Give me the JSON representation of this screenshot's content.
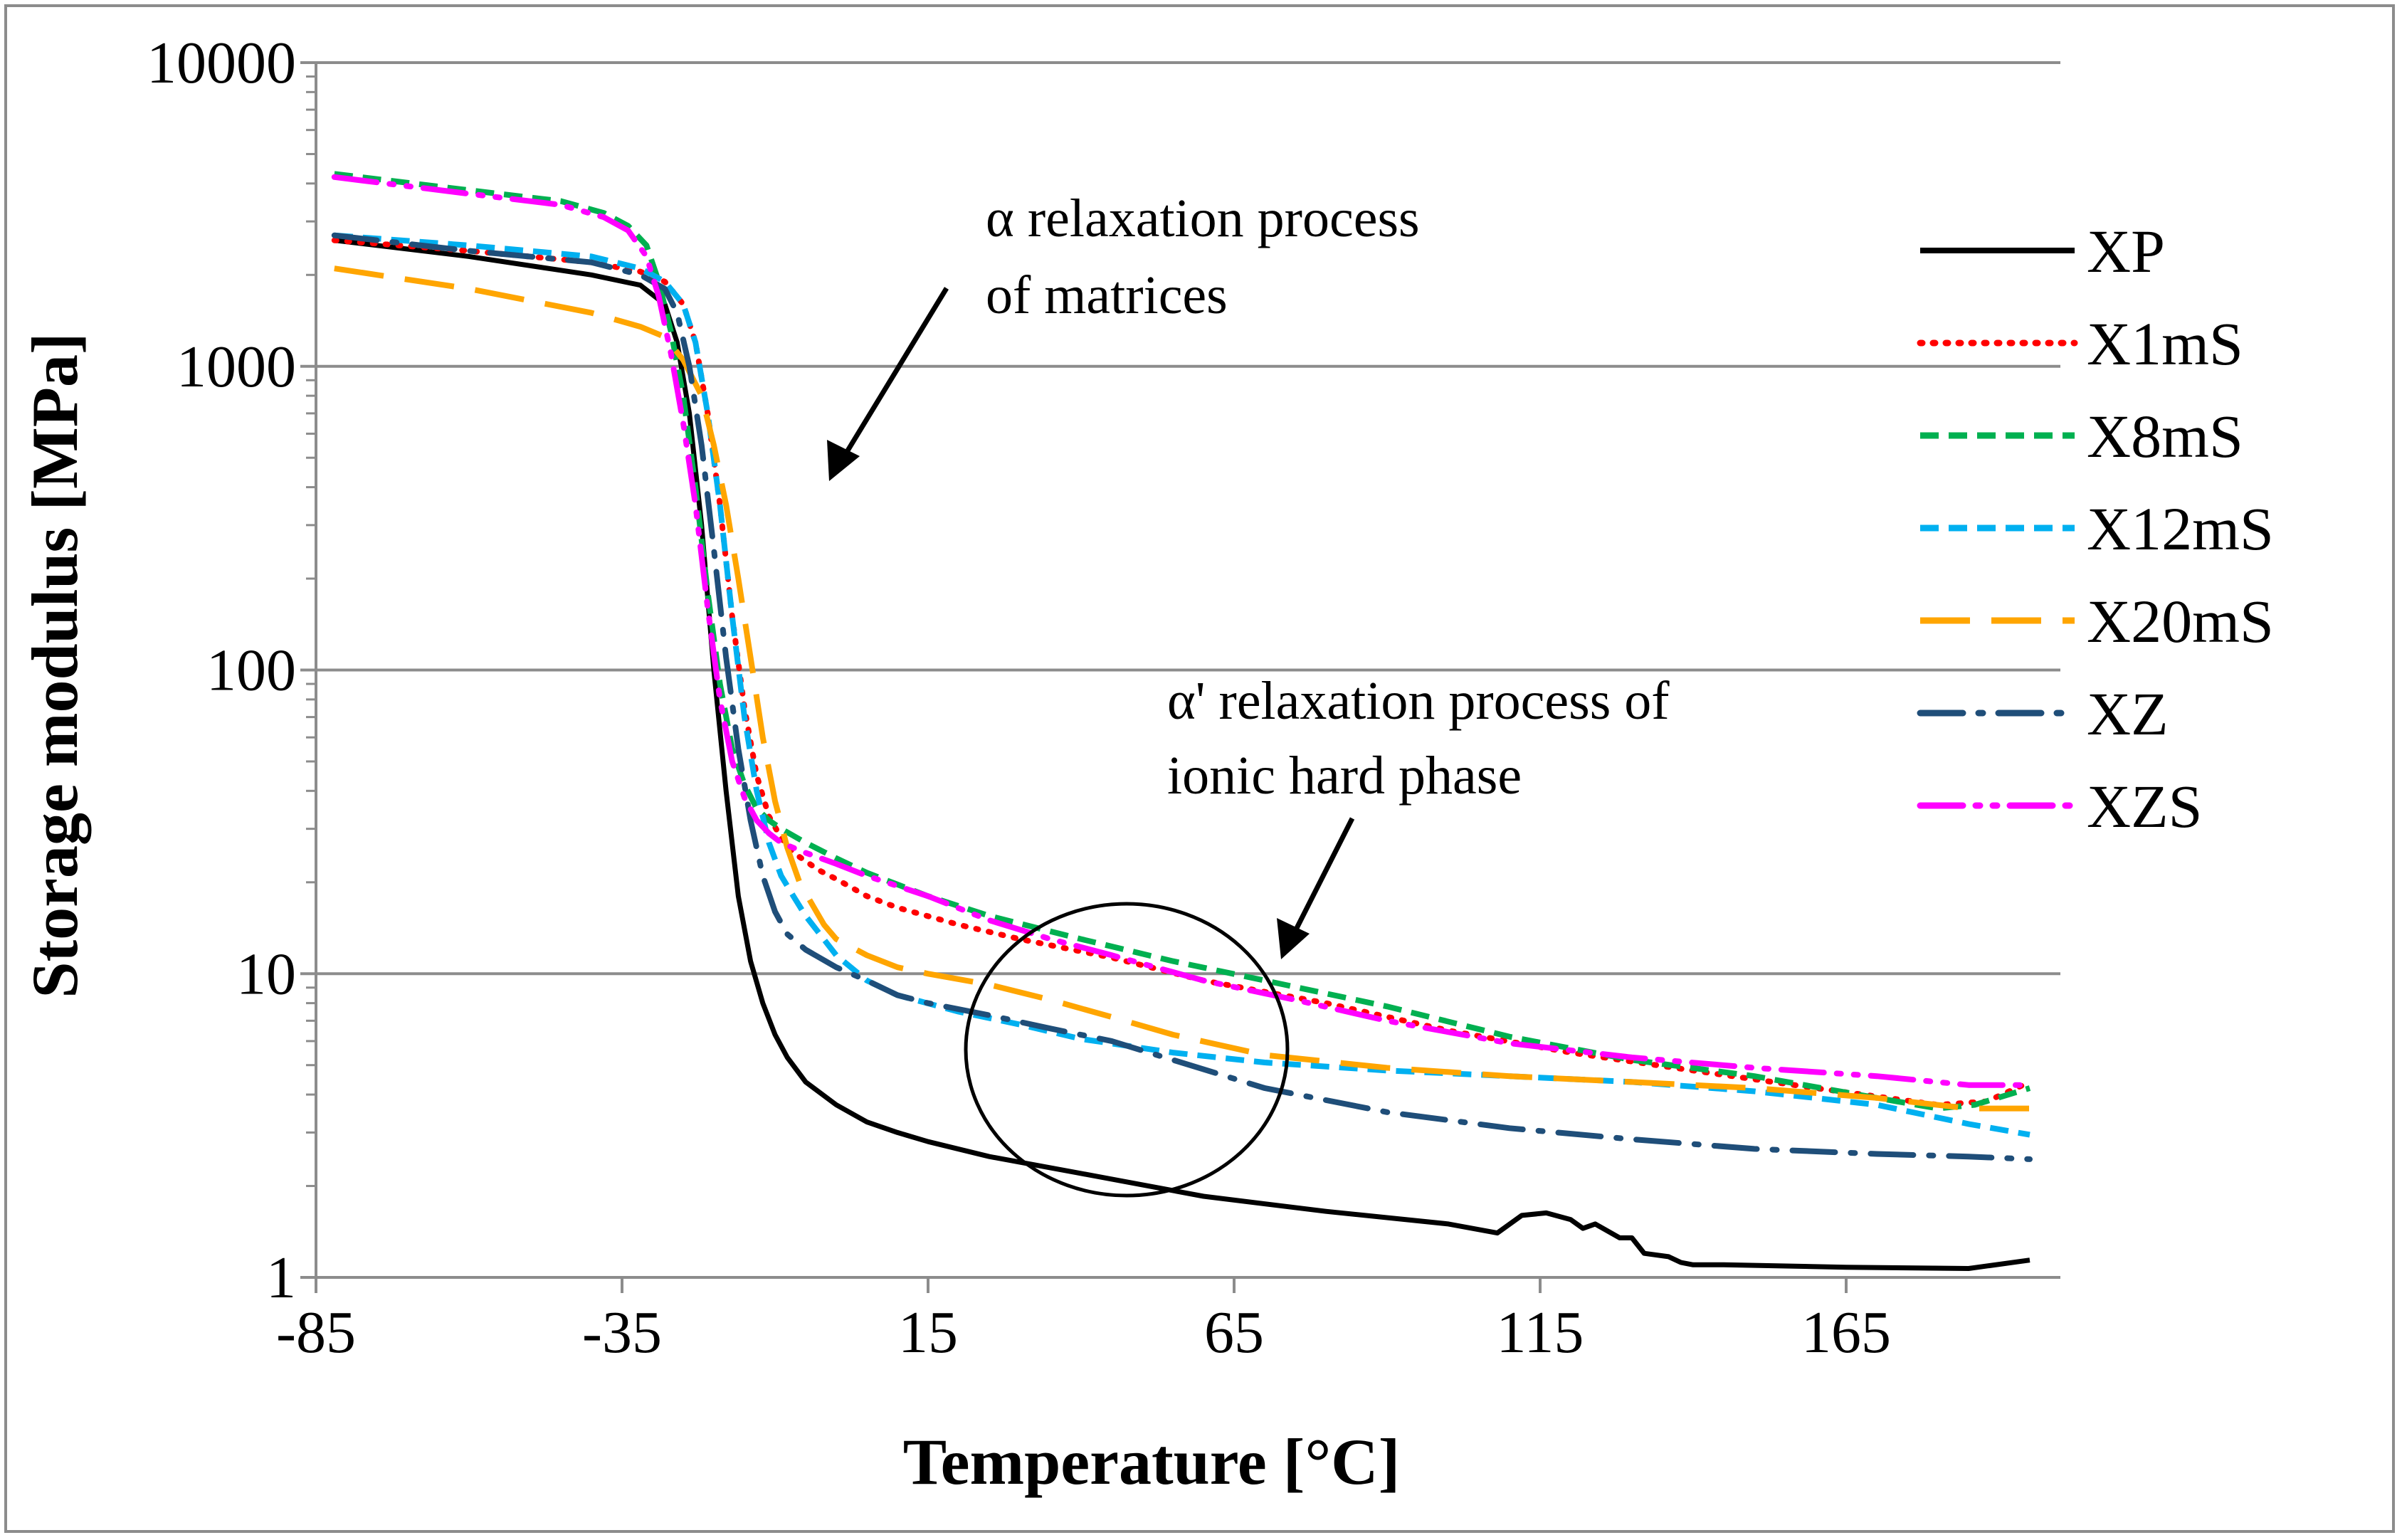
{
  "chart_data": {
    "type": "line",
    "title": "",
    "xlabel": "Temperature [°C]",
    "ylabel": "Storage modulus  [MPa]",
    "xlim": [
      -85,
      200
    ],
    "ylim": [
      1,
      10000
    ],
    "yscale": "log",
    "grid": "horizontal",
    "legend_position": "right",
    "x_ticks": [
      -85,
      -35,
      15,
      65,
      115,
      165
    ],
    "x_tick_labels": [
      "-85",
      "-35",
      "15",
      "65",
      "115",
      "165"
    ],
    "y_ticks": [
      1,
      10,
      100,
      1000,
      10000
    ],
    "y_tick_labels": [
      "1",
      "10",
      "100",
      "1000",
      "10000"
    ],
    "series": [
      {
        "name": "XP",
        "color": "#000000",
        "dash": "solid",
        "x": [
          -82,
          -60,
          -40,
          -32,
          -28,
          -26,
          -24,
          -22,
          -20,
          -18,
          -16,
          -14,
          -12,
          -10,
          -8,
          -5,
          0,
          5,
          10,
          15,
          25,
          40,
          60,
          80,
          100,
          108,
          112,
          116,
          120,
          122,
          124,
          128,
          130,
          132,
          136,
          138,
          140,
          145,
          165,
          185,
          195
        ],
        "y": [
          2600,
          2300,
          2000,
          1850,
          1600,
          1200,
          700,
          300,
          100,
          40,
          18,
          11,
          8,
          6.3,
          5.3,
          4.4,
          3.7,
          3.25,
          3.0,
          2.8,
          2.5,
          2.2,
          1.85,
          1.65,
          1.5,
          1.4,
          1.6,
          1.63,
          1.55,
          1.45,
          1.5,
          1.35,
          1.35,
          1.2,
          1.17,
          1.12,
          1.1,
          1.1,
          1.08,
          1.07,
          1.14
        ]
      },
      {
        "name": "X1mS",
        "color": "#ff0000",
        "dash": "dotted",
        "x": [
          -82,
          -60,
          -40,
          -32,
          -28,
          -25,
          -23,
          -21,
          -19,
          -17,
          -15,
          -13,
          -11,
          -9,
          -7,
          -5,
          -3,
          0,
          5,
          10,
          20,
          30,
          45,
          60,
          80,
          100,
          120,
          140,
          160,
          180,
          188,
          195
        ],
        "y": [
          2600,
          2400,
          2200,
          2050,
          1900,
          1600,
          1200,
          700,
          350,
          150,
          75,
          45,
          33,
          28,
          25,
          23.5,
          22,
          20.5,
          18,
          16.5,
          14.5,
          13,
          11.3,
          9.5,
          8,
          6.5,
          5.5,
          4.8,
          4.2,
          3.7,
          3.8,
          4.4
        ]
      },
      {
        "name": "X8mS",
        "color": "#00b050",
        "dash": "dashed",
        "x": [
          -82,
          -60,
          -45,
          -38,
          -34,
          -31,
          -29,
          -27,
          -25,
          -23,
          -21,
          -19,
          -17,
          -15,
          -13,
          -11,
          -9,
          -5,
          0,
          5,
          15,
          25,
          40,
          55,
          70,
          90,
          110,
          130,
          150,
          170,
          180,
          186,
          195
        ],
        "y": [
          4300,
          3800,
          3500,
          3200,
          2900,
          2500,
          1900,
          1300,
          800,
          400,
          180,
          90,
          55,
          42,
          35,
          32,
          30,
          27,
          24,
          21.5,
          18,
          15.5,
          13,
          11,
          9.5,
          7.8,
          6.2,
          5.2,
          4.6,
          3.9,
          3.6,
          3.7,
          4.2
        ]
      },
      {
        "name": "X12mS",
        "color": "#00b0f0",
        "dash": "dashed",
        "x": [
          -82,
          -60,
          -40,
          -32,
          -28,
          -25,
          -23,
          -21,
          -19,
          -17,
          -15,
          -13,
          -11,
          -9,
          -7,
          -5,
          0,
          5,
          10,
          20,
          30,
          40,
          55,
          70,
          90,
          110,
          130,
          150,
          170,
          185,
          195
        ],
        "y": [
          2700,
          2500,
          2300,
          2100,
          1900,
          1600,
          1200,
          700,
          350,
          150,
          70,
          40,
          27,
          21,
          18,
          15.5,
          11.5,
          9.5,
          8.5,
          7.5,
          6.8,
          6.1,
          5.5,
          5.1,
          4.8,
          4.6,
          4.4,
          4.1,
          3.7,
          3.2,
          2.95
        ]
      },
      {
        "name": "X20mS",
        "color": "#ffa500",
        "dash": "longdash",
        "x": [
          -82,
          -60,
          -40,
          -32,
          -28,
          -25,
          -22,
          -20,
          -18,
          -16,
          -14,
          -12,
          -10,
          -8,
          -6,
          -4,
          -2,
          0,
          5,
          10,
          15,
          25,
          35,
          45,
          55,
          70,
          90,
          110,
          130,
          150,
          170,
          185,
          195
        ],
        "y": [
          2100,
          1800,
          1500,
          1350,
          1250,
          1050,
          800,
          550,
          350,
          200,
          110,
          60,
          37,
          26,
          20,
          17,
          14.5,
          13,
          11.5,
          10.5,
          10,
          9.2,
          8.2,
          7.2,
          6.3,
          5.4,
          4.9,
          4.6,
          4.4,
          4.2,
          3.9,
          3.6,
          3.6
        ]
      },
      {
        "name": "XZ",
        "color": "#1f4e79",
        "dash": "dashdot",
        "x": [
          -82,
          -60,
          -40,
          -32,
          -28,
          -26,
          -24,
          -22,
          -20,
          -18,
          -16,
          -14,
          -12,
          -10,
          -8,
          -5,
          0,
          5,
          10,
          15,
          25,
          35,
          45,
          55,
          70,
          90,
          110,
          130,
          150,
          170,
          185,
          195
        ],
        "y": [
          2700,
          2400,
          2200,
          2000,
          1800,
          1500,
          1000,
          550,
          250,
          110,
          55,
          32,
          21,
          16,
          13.5,
          12,
          10.5,
          9.5,
          8.5,
          8,
          7.3,
          6.6,
          6,
          5.2,
          4.2,
          3.5,
          3.1,
          2.85,
          2.65,
          2.55,
          2.5,
          2.45
        ]
      },
      {
        "name": "XZS",
        "color": "#ff00ff",
        "dash": "dashdotdot",
        "x": [
          -82,
          -60,
          -45,
          -38,
          -34,
          -31,
          -29,
          -27,
          -25,
          -23,
          -21,
          -19,
          -17,
          -15,
          -13,
          -11,
          -9,
          -5,
          0,
          5,
          15,
          25,
          35,
          45,
          60,
          75,
          90,
          110,
          130,
          150,
          170,
          185,
          195
        ],
        "y": [
          4200,
          3700,
          3400,
          3100,
          2800,
          2300,
          1700,
          1100,
          650,
          350,
          160,
          80,
          50,
          38,
          32,
          29,
          27,
          25,
          23,
          21,
          18,
          15,
          13,
          11.5,
          9.5,
          8.2,
          7,
          5.9,
          5.3,
          4.9,
          4.6,
          4.3,
          4.3
        ]
      }
    ],
    "annotations": [
      {
        "id": "alpha",
        "lines": [
          "α relaxation process",
          "of matrices"
        ]
      },
      {
        "id": "alpha-prime",
        "lines": [
          "α' relaxation process of",
          "ionic hard phase"
        ]
      }
    ]
  }
}
